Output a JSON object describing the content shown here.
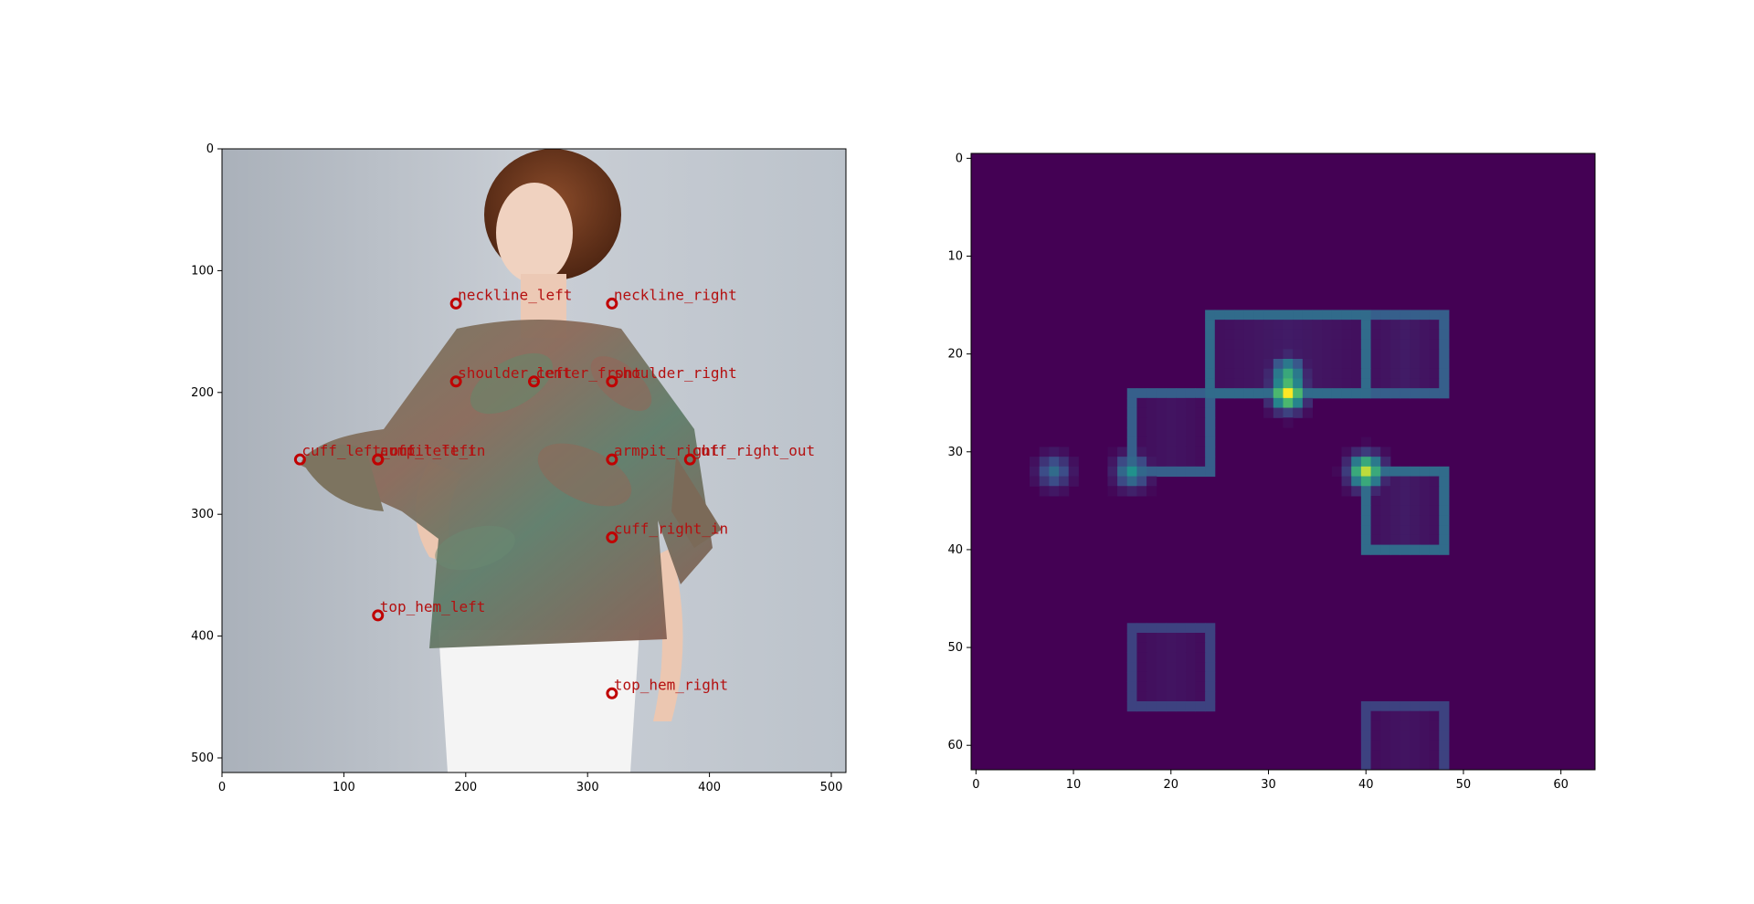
{
  "chart_data": [
    {
      "type": "image",
      "xlim": [
        0,
        512
      ],
      "ylim": [
        512,
        0
      ],
      "x_ticks": [
        0,
        100,
        200,
        300,
        400,
        500
      ],
      "y_ticks": [
        0,
        100,
        200,
        300,
        400,
        500
      ],
      "marker_color": "#c00000",
      "keypoints": [
        {
          "name": "neckline_left",
          "x": 192,
          "y": 127
        },
        {
          "name": "neckline_right",
          "x": 320,
          "y": 127
        },
        {
          "name": "shoulder_left",
          "x": 192,
          "y": 191
        },
        {
          "name": "center_front",
          "x": 256,
          "y": 191
        },
        {
          "name": "shoulder_right",
          "x": 320,
          "y": 191
        },
        {
          "name": "cuff_left_out",
          "x": 64,
          "y": 255
        },
        {
          "name": "armpit_left",
          "x": 128,
          "y": 255
        },
        {
          "name": "cuff_left_in",
          "x": 128,
          "y": 255
        },
        {
          "name": "armpit_right",
          "x": 320,
          "y": 255
        },
        {
          "name": "cuff_right_out",
          "x": 384,
          "y": 255
        },
        {
          "name": "cuff_right_in",
          "x": 320,
          "y": 319
        },
        {
          "name": "top_hem_left",
          "x": 128,
          "y": 383
        },
        {
          "name": "top_hem_right",
          "x": 320,
          "y": 447
        }
      ]
    },
    {
      "type": "heatmap",
      "grid_size": 64,
      "xlim": [
        0,
        64
      ],
      "ylim": [
        64,
        0
      ],
      "x_ticks": [
        0,
        10,
        20,
        30,
        40,
        50,
        60
      ],
      "y_ticks": [
        0,
        10,
        20,
        30,
        40,
        50,
        60
      ],
      "colormap": "viridis",
      "background_color": "#440154",
      "value_range": [
        0,
        1
      ],
      "peaks": [
        {
          "x": 32,
          "y": 24,
          "value": 1.0
        },
        {
          "x": 40,
          "y": 32,
          "value": 0.9
        },
        {
          "x": 32,
          "y": 22,
          "value": 0.6
        },
        {
          "x": 16,
          "y": 32,
          "value": 0.5
        },
        {
          "x": 8,
          "y": 32,
          "value": 0.35
        }
      ],
      "rectangles": [
        {
          "x0": 24,
          "x1": 40,
          "y0": 16,
          "y1": 24,
          "edge": 0.35,
          "inner": 0.08
        },
        {
          "x0": 40,
          "x1": 48,
          "y0": 16,
          "y1": 24,
          "edge": 0.3,
          "inner": 0.08
        },
        {
          "x0": 16,
          "x1": 24,
          "y0": 24,
          "y1": 32,
          "edge": 0.3,
          "inner": 0.06
        },
        {
          "x0": 40,
          "x1": 48,
          "y0": 32,
          "y1": 40,
          "edge": 0.35,
          "inner": 0.08
        },
        {
          "x0": 16,
          "x1": 24,
          "y0": 48,
          "y1": 56,
          "edge": 0.2,
          "inner": 0.06
        },
        {
          "x0": 40,
          "x1": 48,
          "y0": 56,
          "y1": 63,
          "edge": 0.2,
          "inner": 0.06
        }
      ]
    }
  ]
}
